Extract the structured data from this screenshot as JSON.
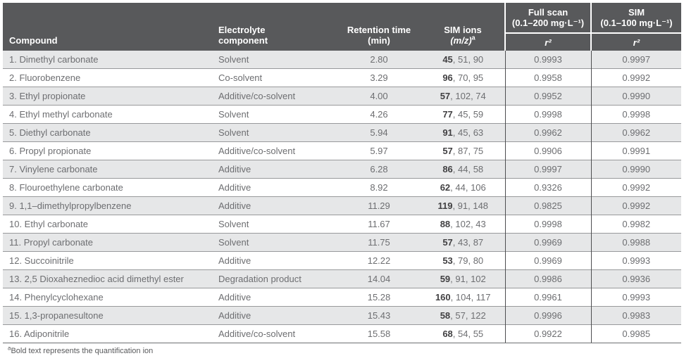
{
  "colors": {
    "header_bg": "#58595B",
    "header_text": "#FFFFFF",
    "row_alt_bg": "#E6E7E8",
    "row_bg": "#FFFFFF",
    "body_text": "#6D6E71",
    "bold_ion_text": "#414042",
    "divider": "#98999B"
  },
  "table": {
    "columns": {
      "compound": "Compound",
      "electrolyte": {
        "line1": "Electrolyte",
        "line2": "component"
      },
      "retention": {
        "line1": "Retention time",
        "line2": "(min)"
      },
      "sim_ions": {
        "line1": "SIM ions",
        "line2": "(m/z)",
        "sup": "a"
      },
      "full_scan": {
        "line1": "Full scan",
        "line2": "(0.1–200 mg·L⁻¹)",
        "sub": "r²"
      },
      "sim": {
        "line1": "SIM",
        "line2": "(0.1–100 mg·L⁻¹)",
        "sub": "r²"
      }
    },
    "rows": [
      {
        "compound": "1. Dimethyl carbonate",
        "electrolyte": "Solvent",
        "retention": "2.80",
        "quant_ion": "45",
        "other_ions": ", 51, 90",
        "full_scan_r2": "0.9993",
        "sim_r2": "0.9997"
      },
      {
        "compound": "2. Fluorobenzene",
        "electrolyte": "Co-solvent",
        "retention": "3.29",
        "quant_ion": "96",
        "other_ions": ", 70, 95",
        "full_scan_r2": "0.9958",
        "sim_r2": "0.9992"
      },
      {
        "compound": "3. Ethyl propionate",
        "electrolyte": "Additive/co-solvent",
        "retention": "4.00",
        "quant_ion": "57",
        "other_ions": ", 102, 74",
        "full_scan_r2": "0.9952",
        "sim_r2": "0.9990"
      },
      {
        "compound": "4. Ethyl methyl carbonate",
        "electrolyte": "Solvent",
        "retention": "4.26",
        "quant_ion": "77",
        "other_ions": ", 45, 59",
        "full_scan_r2": "0.9998",
        "sim_r2": "0.9998"
      },
      {
        "compound": "5. Diethyl carbonate",
        "electrolyte": "Solvent",
        "retention": "5.94",
        "quant_ion": "91",
        "other_ions": ", 45, 63",
        "full_scan_r2": "0.9962",
        "sim_r2": "0.9962"
      },
      {
        "compound": "6. Propyl propionate",
        "electrolyte": "Additive/co-solvent",
        "retention": "5.97",
        "quant_ion": "57",
        "other_ions": ", 87, 75",
        "full_scan_r2": "0.9906",
        "sim_r2": "0.9991"
      },
      {
        "compound": "7. Vinylene carbonate",
        "electrolyte": "Additive",
        "retention": "6.28",
        "quant_ion": "86",
        "other_ions": ", 44, 58",
        "full_scan_r2": "0.9997",
        "sim_r2": "0.9990"
      },
      {
        "compound": "8. Flouroethylene carbonate",
        "electrolyte": "Additive",
        "retention": "8.92",
        "quant_ion": "62",
        "other_ions": ", 44, 106",
        "full_scan_r2": "0.9326",
        "sim_r2": "0.9992"
      },
      {
        "compound": "9. 1,1–dimethylpropylbenzene",
        "electrolyte": "Additive",
        "retention": "11.29",
        "quant_ion": "119",
        "other_ions": ", 91, 148",
        "full_scan_r2": "0.9825",
        "sim_r2": "0.9992"
      },
      {
        "compound": "10. Ethyl carbonate",
        "electrolyte": "Solvent",
        "retention": "11.67",
        "quant_ion": "88",
        "other_ions": ", 102, 43",
        "full_scan_r2": "0.9998",
        "sim_r2": "0.9982"
      },
      {
        "compound": "11. Propyl carbonate",
        "electrolyte": "Solvent",
        "retention": "11.75",
        "quant_ion": "57",
        "other_ions": ", 43, 87",
        "full_scan_r2": "0.9969",
        "sim_r2": "0.9988"
      },
      {
        "compound": "12. Succoinitrile",
        "electrolyte": "Additive",
        "retention": "12.22",
        "quant_ion": "53",
        "other_ions": ", 79, 80",
        "full_scan_r2": "0.9969",
        "sim_r2": "0.9993"
      },
      {
        "compound": "13. 2,5 Dioxaheznedioc acid dimethyl ester",
        "electrolyte": "Degradation product",
        "retention": "14.04",
        "quant_ion": "59",
        "other_ions": ", 91, 102",
        "full_scan_r2": "0.9986",
        "sim_r2": "0.9936"
      },
      {
        "compound": "14. Phenylcyclohexane",
        "electrolyte": "Additive",
        "retention": "15.28",
        "quant_ion": "160",
        "other_ions": ", 104, 117",
        "full_scan_r2": "0.9961",
        "sim_r2": "0.9993"
      },
      {
        "compound": "15. 1,3-propanesultone",
        "electrolyte": "Additive",
        "retention": "15.43",
        "quant_ion": "58",
        "other_ions": ", 57, 122",
        "full_scan_r2": "0.9996",
        "sim_r2": "0.9983"
      },
      {
        "compound": "16. Adiponitrile",
        "electrolyte": "Additive/co-solvent",
        "retention": "15.58",
        "quant_ion": "68",
        "other_ions": ", 54, 55",
        "full_scan_r2": "0.9922",
        "sim_r2": "0.9985"
      }
    ]
  },
  "footnote": {
    "marker": "a",
    "text": "Bold text represents the quantification ion"
  }
}
